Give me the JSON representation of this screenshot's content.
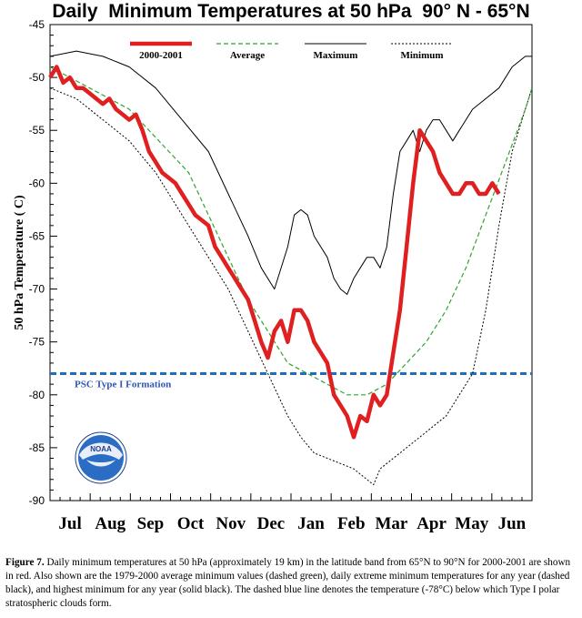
{
  "title": "Daily  Minimum Temperatures at 50 hPa  90° N - 65°N",
  "chart_data": {
    "type": "line",
    "ylabel": "50 hPa Temperature ( C)",
    "ylim": [
      -90,
      -45
    ],
    "yticks": [
      -45,
      -50,
      -55,
      -60,
      -65,
      -70,
      -75,
      -80,
      -85,
      -90
    ],
    "xlim": [
      0,
      365
    ],
    "months": [
      "Jul",
      "Aug",
      "Sep",
      "Oct",
      "Nov",
      "Dec",
      "Jan",
      "Feb",
      "Mar",
      "Apr",
      "May",
      "Jun"
    ],
    "legend": [
      "2000-2001",
      "Average",
      "Maximum",
      "Minimum"
    ],
    "colors": {
      "red": "#e02020",
      "green": "#2fa52f",
      "black": "#000000",
      "blue": "#1f6fc0"
    },
    "threshold": {
      "y": -78,
      "label": "PSC Type I Formation"
    },
    "series": [
      {
        "name": "2000-2001",
        "style": "solid-thick-red",
        "points": [
          [
            0,
            -50
          ],
          [
            5,
            -49
          ],
          [
            10,
            -50.5
          ],
          [
            15,
            -50
          ],
          [
            20,
            -51
          ],
          [
            25,
            -51
          ],
          [
            30,
            -51.5
          ],
          [
            35,
            -52
          ],
          [
            40,
            -52.5
          ],
          [
            45,
            -52
          ],
          [
            50,
            -53
          ],
          [
            55,
            -53.5
          ],
          [
            60,
            -54
          ],
          [
            65,
            -53.5
          ],
          [
            70,
            -55
          ],
          [
            75,
            -57
          ],
          [
            80,
            -58
          ],
          [
            85,
            -59
          ],
          [
            90,
            -59.5
          ],
          [
            95,
            -60
          ],
          [
            100,
            -61
          ],
          [
            105,
            -62
          ],
          [
            110,
            -63
          ],
          [
            115,
            -63.5
          ],
          [
            120,
            -64
          ],
          [
            125,
            -66
          ],
          [
            130,
            -67
          ],
          [
            135,
            -68
          ],
          [
            140,
            -69
          ],
          [
            145,
            -70
          ],
          [
            150,
            -71
          ],
          [
            155,
            -73
          ],
          [
            160,
            -75
          ],
          [
            165,
            -76.5
          ],
          [
            170,
            -74
          ],
          [
            175,
            -73
          ],
          [
            180,
            -75
          ],
          [
            185,
            -72
          ],
          [
            190,
            -72
          ],
          [
            195,
            -73
          ],
          [
            200,
            -75
          ],
          [
            205,
            -76
          ],
          [
            210,
            -77
          ],
          [
            215,
            -80
          ],
          [
            220,
            -81
          ],
          [
            225,
            -82
          ],
          [
            230,
            -84
          ],
          [
            235,
            -82
          ],
          [
            240,
            -82.5
          ],
          [
            245,
            -80
          ],
          [
            250,
            -81
          ],
          [
            255,
            -80
          ],
          [
            260,
            -76
          ],
          [
            265,
            -72
          ],
          [
            270,
            -66
          ],
          [
            275,
            -60
          ],
          [
            280,
            -55
          ],
          [
            285,
            -56
          ],
          [
            290,
            -57
          ],
          [
            295,
            -59
          ],
          [
            300,
            -60
          ],
          [
            305,
            -61
          ],
          [
            310,
            -61
          ],
          [
            315,
            -60
          ],
          [
            320,
            -60
          ],
          [
            325,
            -61
          ],
          [
            330,
            -61
          ],
          [
            335,
            -60
          ],
          [
            340,
            -61
          ]
        ]
      },
      {
        "name": "Average",
        "style": "dashed-green",
        "points": [
          [
            0,
            -49
          ],
          [
            30,
            -51
          ],
          [
            60,
            -53
          ],
          [
            90,
            -57
          ],
          [
            105,
            -59
          ],
          [
            120,
            -63
          ],
          [
            135,
            -67
          ],
          [
            150,
            -71
          ],
          [
            165,
            -74
          ],
          [
            180,
            -77
          ],
          [
            195,
            -78
          ],
          [
            210,
            -79
          ],
          [
            225,
            -80
          ],
          [
            240,
            -80
          ],
          [
            255,
            -79
          ],
          [
            270,
            -77
          ],
          [
            285,
            -75
          ],
          [
            300,
            -72
          ],
          [
            315,
            -68
          ],
          [
            330,
            -63
          ],
          [
            345,
            -58
          ],
          [
            360,
            -53
          ],
          [
            365,
            -51
          ]
        ]
      },
      {
        "name": "Maximum",
        "style": "solid-thin-black",
        "points": [
          [
            0,
            -48
          ],
          [
            20,
            -47.5
          ],
          [
            40,
            -48
          ],
          [
            60,
            -49
          ],
          [
            80,
            -51
          ],
          [
            100,
            -54
          ],
          [
            120,
            -57
          ],
          [
            135,
            -61
          ],
          [
            150,
            -65
          ],
          [
            160,
            -68
          ],
          [
            170,
            -70
          ],
          [
            180,
            -66
          ],
          [
            185,
            -63
          ],
          [
            190,
            -62.5
          ],
          [
            195,
            -63
          ],
          [
            200,
            -65
          ],
          [
            205,
            -66
          ],
          [
            210,
            -67
          ],
          [
            215,
            -69
          ],
          [
            220,
            -70
          ],
          [
            225,
            -70.5
          ],
          [
            230,
            -69
          ],
          [
            235,
            -68
          ],
          [
            240,
            -67
          ],
          [
            245,
            -67
          ],
          [
            250,
            -68
          ],
          [
            255,
            -66
          ],
          [
            260,
            -61
          ],
          [
            265,
            -57
          ],
          [
            270,
            -56
          ],
          [
            275,
            -55
          ],
          [
            280,
            -57
          ],
          [
            285,
            -55
          ],
          [
            290,
            -54
          ],
          [
            295,
            -54
          ],
          [
            300,
            -55
          ],
          [
            305,
            -56
          ],
          [
            310,
            -55
          ],
          [
            315,
            -54
          ],
          [
            320,
            -53
          ],
          [
            330,
            -52
          ],
          [
            340,
            -51
          ],
          [
            350,
            -49
          ],
          [
            360,
            -48
          ],
          [
            365,
            -48
          ]
        ]
      },
      {
        "name": "Minimum",
        "style": "dotted-black",
        "points": [
          [
            0,
            -51
          ],
          [
            20,
            -52
          ],
          [
            40,
            -54
          ],
          [
            60,
            -56
          ],
          [
            80,
            -59
          ],
          [
            100,
            -63
          ],
          [
            120,
            -67
          ],
          [
            135,
            -70
          ],
          [
            150,
            -74
          ],
          [
            165,
            -78
          ],
          [
            180,
            -82
          ],
          [
            190,
            -84
          ],
          [
            200,
            -85.5
          ],
          [
            210,
            -86
          ],
          [
            220,
            -86.5
          ],
          [
            230,
            -87
          ],
          [
            240,
            -88
          ],
          [
            245,
            -88.5
          ],
          [
            250,
            -87
          ],
          [
            260,
            -86
          ],
          [
            270,
            -85
          ],
          [
            280,
            -84
          ],
          [
            290,
            -83
          ],
          [
            300,
            -82
          ],
          [
            310,
            -80
          ],
          [
            320,
            -78
          ],
          [
            330,
            -72
          ],
          [
            340,
            -64
          ],
          [
            350,
            -57
          ],
          [
            360,
            -53
          ],
          [
            365,
            -51
          ]
        ]
      }
    ]
  },
  "legend_labels": {
    "actual": "2000-2001",
    "average": "Average",
    "maximum": "Maximum",
    "minimum": "Minimum"
  },
  "logo": {
    "text": "NOAA",
    "icon": "noaa-logo-icon"
  },
  "caption": {
    "lead": "Figure 7.",
    "text": " Daily minimum temperatures at 50 hPa (approximately 19 km) in the latitude band from 65°N to 90°N for 2000-2001 are shown in red.  Also shown are the 1979-2000 average minimum values (dashed green), daily extreme minimum temperatures for any year (dashed black), and highest minimum for any year (solid black). The dashed blue line denotes the temperature (-78°C) below which Type I polar stratospheric clouds form."
  }
}
